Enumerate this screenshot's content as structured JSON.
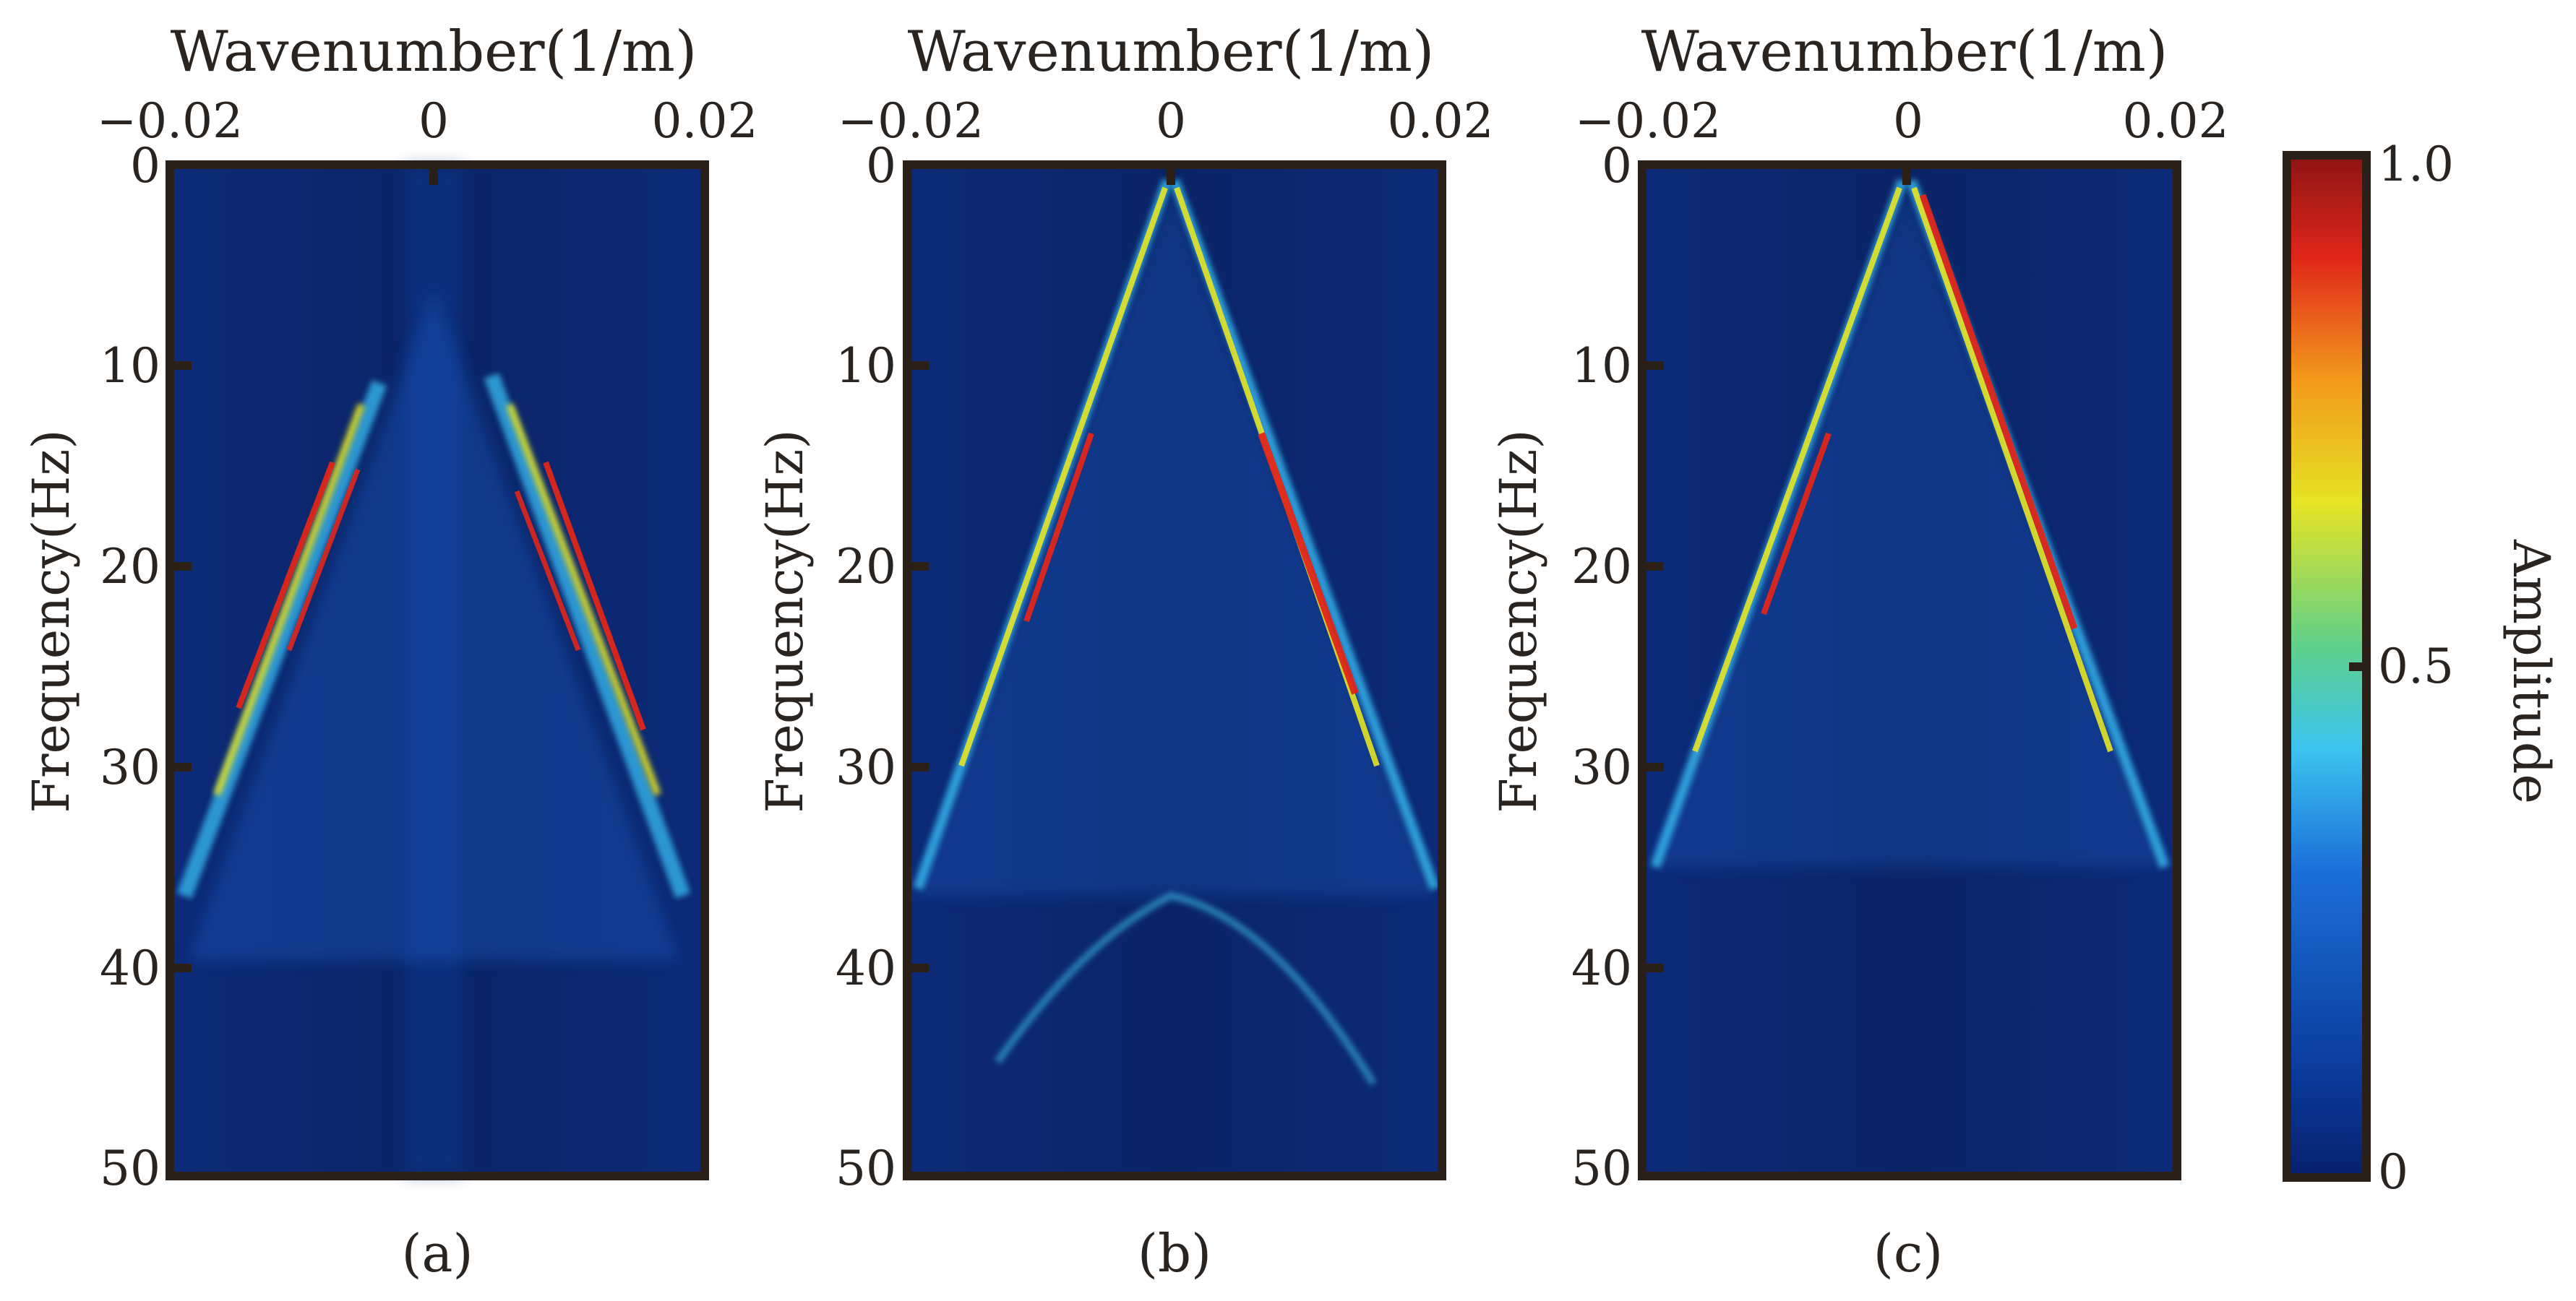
{
  "chart_data": [
    {
      "type": "heatmap",
      "panel_label": "(a)",
      "xlabel": "Wavenumber(1/m)",
      "ylabel": "Frequency(Hz)",
      "xlim": [
        -0.02,
        0.02
      ],
      "ylim": [
        0,
        50
      ],
      "x_ticks": [
        -0.02,
        0,
        0.02
      ],
      "x_tick_labels": [
        "−0.02",
        "0",
        "0.02"
      ],
      "y_ticks": [
        0,
        10,
        20,
        30,
        40,
        50
      ],
      "y_tick_labels": [
        "0",
        "10",
        "20",
        "30",
        "40",
        "50"
      ],
      "y_axis_inverted": true,
      "x_axis_position": "top",
      "colormap": "jet",
      "energy_bands": [
        {
          "side": "left",
          "k_slope": -0.00096,
          "f_range": [
            11,
            37
          ],
          "peak_amplitude": 1.0,
          "peak_f_range": [
            16,
            28
          ]
        },
        {
          "side": "right",
          "k_slope": 0.00096,
          "f_range": [
            11,
            37
          ],
          "peak_amplitude": 1.0,
          "peak_f_range": [
            14,
            30
          ]
        }
      ],
      "background_amplitude": 0.1
    },
    {
      "type": "heatmap",
      "panel_label": "(b)",
      "xlabel": "Wavenumber(1/m)",
      "ylabel": "Frequency(Hz)",
      "xlim": [
        -0.02,
        0.02
      ],
      "ylim": [
        0,
        50
      ],
      "x_ticks": [
        -0.02,
        0,
        0.02
      ],
      "x_tick_labels": [
        "−0.02",
        "0",
        "0.02"
      ],
      "y_ticks": [
        0,
        10,
        20,
        30,
        40,
        50
      ],
      "y_tick_labels": [
        "0",
        "10",
        "20",
        "30",
        "40",
        "50"
      ],
      "y_axis_inverted": true,
      "x_axis_position": "top",
      "colormap": "jet",
      "energy_bands": [
        {
          "side": "left",
          "k_slope": -0.00061,
          "f_range": [
            0,
            36
          ],
          "peak_amplitude": 1.0,
          "peak_f_range": [
            14,
            22
          ]
        },
        {
          "side": "right",
          "k_slope": 0.00061,
          "f_range": [
            0,
            36
          ],
          "peak_amplitude": 1.0,
          "peak_f_range": [
            13,
            26
          ]
        }
      ],
      "background_amplitude": 0.1
    },
    {
      "type": "heatmap",
      "panel_label": "(c)",
      "xlabel": "Wavenumber(1/m)",
      "ylabel": "Frequency(Hz)",
      "xlim": [
        -0.02,
        0.02
      ],
      "ylim": [
        0,
        50
      ],
      "x_ticks": [
        -0.02,
        0,
        0.02
      ],
      "x_tick_labels": [
        "−0.02",
        "0",
        "0.02"
      ],
      "y_ticks": [
        0,
        10,
        20,
        30,
        40,
        50
      ],
      "y_tick_labels": [
        "0",
        "10",
        "20",
        "30",
        "40",
        "50"
      ],
      "y_axis_inverted": true,
      "x_axis_position": "top",
      "colormap": "jet",
      "energy_bands": [
        {
          "side": "left",
          "k_slope": -0.00058,
          "f_range": [
            0,
            35
          ],
          "peak_amplitude": 1.0,
          "peak_f_range": [
            14,
            22
          ]
        },
        {
          "side": "right",
          "k_slope": 0.00058,
          "f_range": [
            0,
            35
          ],
          "peak_amplitude": 1.0,
          "peak_f_range": [
            1,
            24
          ]
        }
      ],
      "background_amplitude": 0.1
    }
  ],
  "colorbar": {
    "label": "Amplitude",
    "ticks": [
      0,
      0.5,
      1.0
    ],
    "tick_labels": [
      "0",
      "0.5",
      "1.0"
    ],
    "range": [
      0,
      1.0
    ],
    "colormap": "jet"
  },
  "colors": {
    "frame": "#2a2018",
    "jet_stops": [
      "#08206e",
      "#0a3a9a",
      "#1c6fd8",
      "#3cc4ef",
      "#5fd08a",
      "#e6e424",
      "#f39a1c",
      "#e0261a",
      "#8c1414"
    ]
  }
}
